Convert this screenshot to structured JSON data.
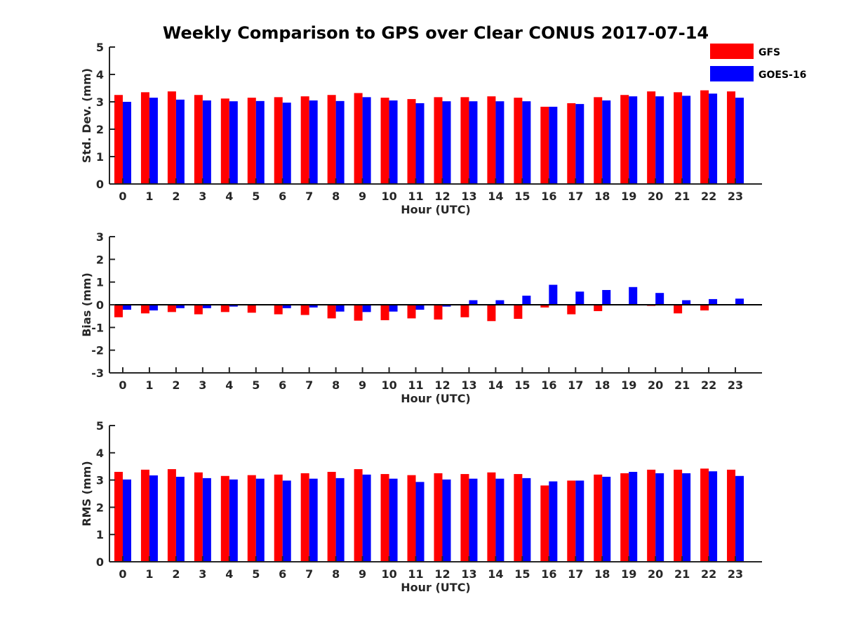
{
  "chart_data": {
    "title": "Weekly Comparison to GPS over Clear CONUS 2017-07-14",
    "legend": {
      "placement": "top-right",
      "entries": [
        {
          "name": "GFS",
          "color": "#ff0000"
        },
        {
          "name": "GOES-16",
          "color": "#0000ff"
        }
      ]
    },
    "panels": [
      {
        "type": "bar",
        "xlabel": "Hour (UTC)",
        "ylabel": "Std. Dev. (mm)",
        "ylim": [
          0,
          5
        ],
        "yticks": [
          "0",
          "1",
          "2",
          "3",
          "4",
          "5"
        ],
        "categories": [
          "0",
          "1",
          "2",
          "3",
          "4",
          "5",
          "6",
          "7",
          "8",
          "9",
          "10",
          "11",
          "12",
          "13",
          "14",
          "15",
          "16",
          "17",
          "18",
          "19",
          "20",
          "21",
          "22",
          "23"
        ],
        "series": [
          {
            "name": "GFS",
            "color": "#ff0000",
            "values": [
              3.25,
              3.35,
              3.38,
              3.25,
              3.12,
              3.15,
              3.17,
              3.2,
              3.25,
              3.32,
              3.15,
              3.1,
              3.17,
              3.17,
              3.2,
              3.15,
              2.82,
              2.95,
              3.17,
              3.25,
              3.38,
              3.35,
              3.42,
              3.38
            ]
          },
          {
            "name": "GOES-16",
            "color": "#0000ff",
            "values": [
              3.0,
              3.15,
              3.08,
              3.05,
              3.02,
              3.03,
              2.97,
              3.05,
              3.03,
              3.17,
              3.05,
              2.95,
              3.02,
              3.02,
              3.02,
              3.02,
              2.82,
              2.92,
              3.05,
              3.2,
              3.2,
              3.22,
              3.3,
              3.15
            ]
          }
        ]
      },
      {
        "type": "bar",
        "xlabel": "Hour (UTC)",
        "ylabel": "Bias (mm)",
        "ylim": [
          -3,
          3
        ],
        "yticks": [
          "-3",
          "-2",
          "-1",
          "0",
          "1",
          "2",
          "3"
        ],
        "categories": [
          "0",
          "1",
          "2",
          "3",
          "4",
          "5",
          "6",
          "7",
          "8",
          "9",
          "10",
          "11",
          "12",
          "13",
          "14",
          "15",
          "16",
          "17",
          "18",
          "19",
          "20",
          "21",
          "22",
          "23"
        ],
        "series": [
          {
            "name": "GFS",
            "color": "#ff0000",
            "values": [
              -0.55,
              -0.38,
              -0.32,
              -0.42,
              -0.32,
              -0.35,
              -0.42,
              -0.45,
              -0.6,
              -0.7,
              -0.68,
              -0.6,
              -0.65,
              -0.55,
              -0.72,
              -0.62,
              -0.12,
              -0.42,
              -0.28,
              0.0,
              -0.05,
              -0.38,
              -0.25,
              0.0
            ]
          },
          {
            "name": "GOES-16",
            "color": "#0000ff",
            "values": [
              -0.22,
              -0.25,
              -0.15,
              -0.15,
              -0.08,
              0.0,
              -0.15,
              -0.12,
              -0.3,
              -0.32,
              -0.3,
              -0.22,
              -0.08,
              0.2,
              0.2,
              0.4,
              0.88,
              0.58,
              0.65,
              0.78,
              0.52,
              0.2,
              0.25,
              0.27
            ]
          }
        ]
      },
      {
        "type": "bar",
        "xlabel": "Hour (UTC)",
        "ylabel": "RMS (mm)",
        "ylim": [
          0,
          5
        ],
        "yticks": [
          "0",
          "1",
          "2",
          "3",
          "4",
          "5"
        ],
        "categories": [
          "0",
          "1",
          "2",
          "3",
          "4",
          "5",
          "6",
          "7",
          "8",
          "9",
          "10",
          "11",
          "12",
          "13",
          "14",
          "15",
          "16",
          "17",
          "18",
          "19",
          "20",
          "21",
          "22",
          "23"
        ],
        "series": [
          {
            "name": "GFS",
            "color": "#ff0000",
            "values": [
              3.3,
              3.38,
              3.4,
              3.28,
              3.15,
              3.18,
              3.2,
              3.25,
              3.3,
              3.4,
              3.22,
              3.18,
              3.25,
              3.22,
              3.28,
              3.22,
              2.8,
              2.98,
              3.2,
              3.25,
              3.38,
              3.38,
              3.42,
              3.38
            ]
          },
          {
            "name": "GOES-16",
            "color": "#0000ff",
            "values": [
              3.02,
              3.17,
              3.12,
              3.07,
              3.02,
              3.05,
              2.98,
              3.05,
              3.07,
              3.2,
              3.05,
              2.93,
              3.02,
              3.05,
              3.05,
              3.07,
              2.95,
              2.98,
              3.12,
              3.3,
              3.25,
              3.25,
              3.32,
              3.15
            ]
          }
        ]
      }
    ]
  }
}
